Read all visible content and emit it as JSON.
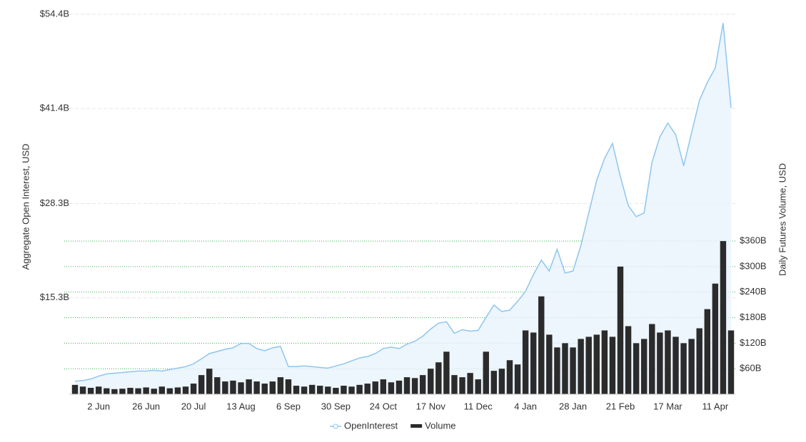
{
  "chart_data": {
    "type": "line",
    "categories": [
      null,
      null,
      null,
      "2 Jun",
      null,
      null,
      null,
      null,
      null,
      "26 Jun",
      null,
      null,
      null,
      null,
      null,
      "20 Jul",
      null,
      null,
      null,
      null,
      null,
      "13 Aug",
      null,
      null,
      null,
      null,
      null,
      "6 Sep",
      null,
      null,
      null,
      null,
      null,
      "30 Sep",
      null,
      null,
      null,
      null,
      null,
      "24 Oct",
      null,
      null,
      null,
      null,
      null,
      "17 Nov",
      null,
      null,
      null,
      null,
      null,
      "11 Dec",
      null,
      null,
      null,
      null,
      null,
      "4 Jan",
      null,
      null,
      null,
      null,
      null,
      "28 Jan",
      null,
      null,
      null,
      null,
      null,
      "21 Feb",
      null,
      null,
      null,
      null,
      null,
      "17 Mar",
      null,
      null,
      null,
      null,
      null,
      "11 Apr",
      null,
      null
    ],
    "series": [
      {
        "name": "OpenInterest",
        "type": "area",
        "color": "#8ec6ef",
        "values": [
          3.8,
          3.9,
          4.1,
          4.5,
          4.8,
          4.9,
          5.0,
          5.1,
          5.2,
          5.2,
          5.3,
          5.2,
          5.4,
          5.6,
          5.8,
          6.2,
          6.9,
          7.6,
          7.9,
          8.2,
          8.4,
          9.0,
          9.0,
          8.3,
          8.0,
          8.4,
          8.6,
          5.8,
          5.8,
          5.9,
          5.8,
          5.7,
          5.6,
          5.9,
          6.2,
          6.6,
          7.0,
          7.2,
          7.6,
          8.3,
          8.5,
          8.3,
          8.9,
          9.3,
          10.0,
          11.0,
          11.8,
          12.0,
          10.4,
          10.9,
          10.7,
          10.8,
          12.6,
          14.3,
          13.4,
          13.6,
          14.8,
          16.2,
          18.5,
          20.5,
          19.0,
          22.0,
          18.7,
          19.0,
          22.5,
          27.0,
          31.5,
          34.5,
          36.6,
          32.0,
          28.0,
          26.5,
          27.0,
          34.0,
          37.5,
          39.4,
          37.8,
          33.5,
          38.0,
          42.5,
          45.0,
          47.0,
          53.2,
          41.5
        ]
      },
      {
        "name": "Volume",
        "type": "bar",
        "axis": "y2",
        "color": "#2b2b2b",
        "values": [
          22,
          18,
          15,
          18,
          14,
          12,
          13,
          15,
          14,
          16,
          13,
          18,
          14,
          16,
          18,
          25,
          45,
          60,
          40,
          30,
          32,
          28,
          35,
          30,
          25,
          30,
          40,
          35,
          20,
          18,
          22,
          20,
          18,
          15,
          20,
          18,
          22,
          25,
          30,
          35,
          28,
          32,
          40,
          38,
          45,
          60,
          75,
          100,
          45,
          40,
          50,
          35,
          100,
          55,
          60,
          80,
          70,
          150,
          145,
          230,
          140,
          110,
          120,
          110,
          130,
          135,
          140,
          150,
          135,
          300,
          160,
          120,
          130,
          165,
          145,
          150,
          135,
          120,
          130,
          155,
          200,
          260,
          360,
          150
        ]
      }
    ],
    "y_label": "Aggregate Open Interest, USD",
    "y2_label": "Daily Futures Volume, USD",
    "ylim": [
      2,
      54.4
    ],
    "yticks": [
      {
        "value": 15.3,
        "label": "$15.3B"
      },
      {
        "value": 28.3,
        "label": "$28.3B"
      },
      {
        "value": 41.4,
        "label": "$41.4B"
      },
      {
        "value": 54.4,
        "label": "$54.4B"
      }
    ],
    "y2lim": [
      0,
      893
    ],
    "y2ticks": [
      {
        "value": 60,
        "label": "$60B"
      },
      {
        "value": 120,
        "label": "$120B"
      },
      {
        "value": 180,
        "label": "$180B"
      },
      {
        "value": 240,
        "label": "$240B"
      },
      {
        "value": 300,
        "label": "$300B"
      },
      {
        "value": 360,
        "label": "$360B"
      }
    ],
    "grid": true
  }
}
